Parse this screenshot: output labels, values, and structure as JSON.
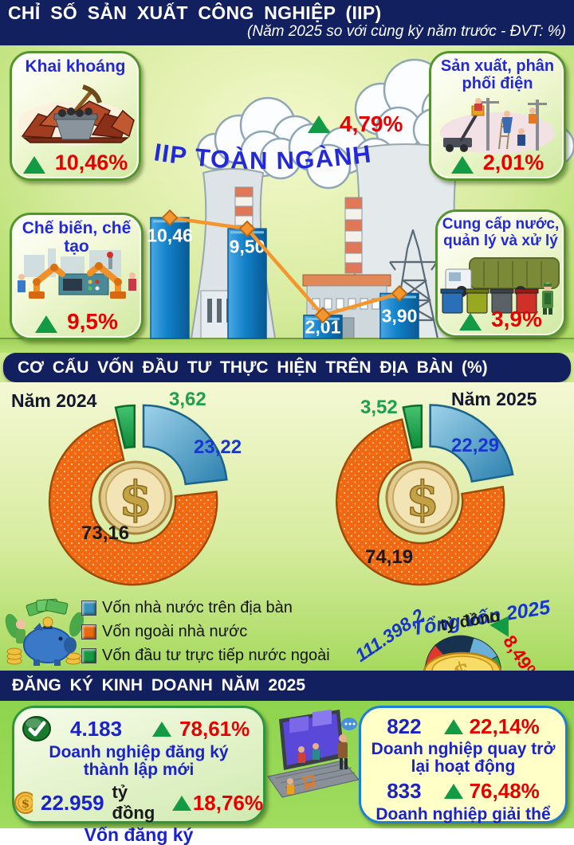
{
  "header": {
    "title": "CHỈ SỐ SẢN XUẤT CÔNG NGHIỆP (IIP)",
    "subtitle": "(Năm 2025 so với cùng kỳ năm trước - ĐVT: %)"
  },
  "iip": {
    "overall_label": "IIP TOÀN NGÀNH",
    "overall_value": "4,79%",
    "cards": [
      {
        "title": "Khai khoáng",
        "value": "10,46%"
      },
      {
        "title": "Sản xuất, phân phối điện",
        "value": "2,01%"
      },
      {
        "title": "Chế biến, chế tạo",
        "value": "9,5%"
      },
      {
        "title": "Cung cấp nước, quản lý và xử lý …",
        "value": "3,9%"
      }
    ]
  },
  "capital": {
    "section_title": "CƠ CẤU VỐN ĐẦU TƯ THỰC HIỆN TRÊN ĐỊA BÀN (%)",
    "year_2024": "Năm 2024",
    "year_2025": "Năm 2025",
    "legend": [
      "Vốn nhà nước trên địa bàn",
      "Vốn ngoài nhà nước",
      "Vốn đầu tư trực tiếp nước ngoài"
    ],
    "total_title": "Tổng vốn 2025",
    "total_amount": "111.398,2",
    "total_unit": "tỷ đồng",
    "total_growth": "8,49%"
  },
  "business": {
    "section_title": "ĐĂNG KÝ KINH DOANH NĂM 2025",
    "new_count": "4.183",
    "new_growth": "78,61%",
    "new_label": "Doanh nghiệp đăng ký thành lập mới",
    "capital_value": "22.959",
    "capital_unit": "tỷ đồng",
    "capital_growth": "18,76%",
    "capital_label": "Vốn đăng ký",
    "return_count": "822",
    "return_growth": "22,14%",
    "return_label": "Doanh nghiệp quay trở lại hoạt động",
    "dissolve_count": "833",
    "dissolve_growth": "76,48%",
    "dissolve_label": "Doanh nghiệp giải thể"
  },
  "chart_data": [
    {
      "type": "bar",
      "title": "IIP TOÀN NGÀNH",
      "subtitle": "(Năm 2025 so với cùng kỳ năm trước - ĐVT: %)",
      "categories": [
        "Khai khoáng",
        "Chế biến, chế tạo",
        "Sản xuất, phân phối điện",
        "Cung cấp nước, quản lý và xử lý"
      ],
      "values": [
        10.46,
        9.5,
        2.01,
        3.9
      ],
      "labels": [
        "10,46",
        "9,50",
        "2,01",
        "3,90"
      ],
      "overall_value": 4.79,
      "ylim": [
        0,
        12
      ],
      "line_overlay": true,
      "bar_color": "#1080c8",
      "line_color": "#f5952e"
    },
    {
      "type": "pie",
      "title": "Năm 2024",
      "categories": [
        "Vốn nhà nước trên địa bàn",
        "Vốn ngoài nhà nước",
        "Vốn đầu tư trực tiếp nước ngoài"
      ],
      "values": [
        23.22,
        73.16,
        3.62
      ],
      "labels": [
        "23,22",
        "73,16",
        "3,62"
      ],
      "colors": [
        "#3e97c0",
        "#f06812",
        "#18a048"
      ]
    },
    {
      "type": "pie",
      "title": "Năm 2025",
      "categories": [
        "Vốn nhà nước trên địa bàn",
        "Vốn ngoài nhà nước",
        "Vốn đầu tư trực tiếp nước ngoài"
      ],
      "values": [
        22.29,
        74.19,
        3.52
      ],
      "labels": [
        "22,29",
        "74,19",
        "3,52"
      ],
      "colors": [
        "#3e97c0",
        "#f06812",
        "#18a048"
      ]
    }
  ]
}
